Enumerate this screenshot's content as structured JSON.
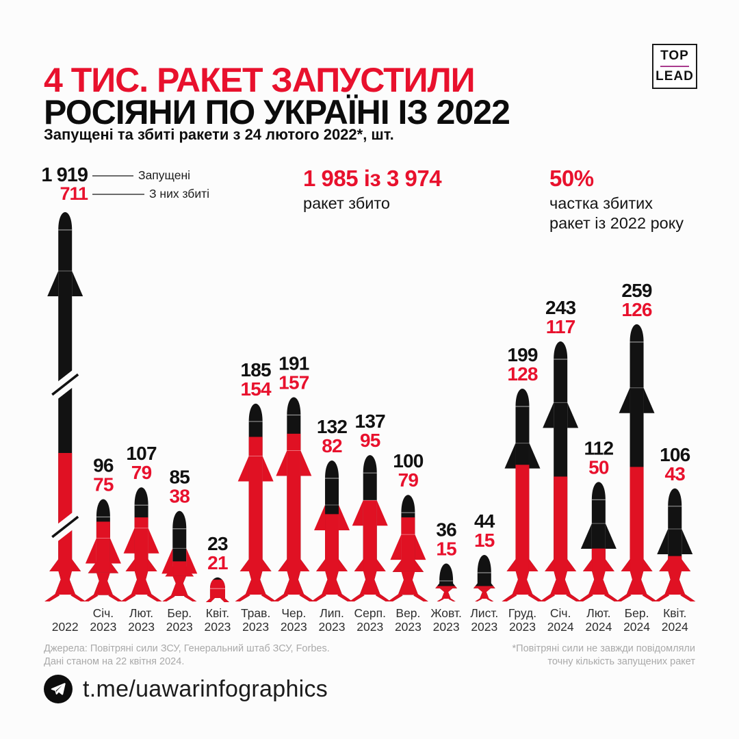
{
  "header": {
    "title_line1": "4 ТИС. РАКЕТ ЗАПУСТИЛИ",
    "title_line2": "РОСІЯНИ ПО УКРАЇНІ ІЗ 2022",
    "subtitle": "Запущені та збиті ракети з 24 лютого 2022*, шт."
  },
  "logo": {
    "line1": "TOP",
    "line2": "LEAD"
  },
  "legend": {
    "launched_value": "1 919",
    "launched_label": "Запущені",
    "downed_value": "711",
    "downed_label": "З них збиті"
  },
  "stats": {
    "downed_total": {
      "value": "1 985 із 3 974",
      "label": "ракет збито"
    },
    "share_2022": {
      "value": "50%",
      "label_line1": "частка збитих",
      "label_line2": "ракет із 2022 року"
    }
  },
  "chart_data": {
    "type": "bar",
    "title": "Запущені та збиті ракети з 24 лютого 2022, шт.",
    "bar_style": "missile-pictogram",
    "first_bar_truncated": true,
    "legend_position": "top-left",
    "grid": false,
    "categories": [
      "2022",
      "Січ. 2023",
      "Лют. 2023",
      "Бер. 2023",
      "Квіт. 2023",
      "Трав. 2023",
      "Чер. 2023",
      "Лип. 2023",
      "Серп. 2023",
      "Вер. 2023",
      "Жовт. 2023",
      "Лист. 2023",
      "Груд. 2023",
      "Січ. 2024",
      "Лют. 2024",
      "Бер. 2024",
      "Квіт. 2024"
    ],
    "series": [
      {
        "name": "Запущені",
        "color": "#121212",
        "values": [
          1919,
          96,
          107,
          85,
          23,
          185,
          191,
          132,
          137,
          100,
          36,
          44,
          199,
          243,
          112,
          259,
          106
        ]
      },
      {
        "name": "З них збиті",
        "color": "#e01123",
        "values": [
          711,
          75,
          79,
          38,
          21,
          154,
          157,
          82,
          95,
          79,
          15,
          15,
          128,
          117,
          50,
          126,
          43
        ]
      }
    ]
  },
  "footnotes": {
    "sources_line1": "Джерела: Повітряні сили ЗСУ, Генеральний штаб ЗСУ, Forbes.",
    "sources_line2": "Дані станом на 22 квітня 2024.",
    "note_line1": "*Повітряні сили не завжди повідомляли",
    "note_line2": "точну кількість запущених ракет"
  },
  "telegram": {
    "handle": "t.me/uawarinfographics"
  },
  "colors": {
    "accent_red": "#e8112d",
    "bar_red": "#e01123",
    "bar_black": "#121212",
    "logo_magenta": "#a93a8d",
    "footnote_gray": "#a9a9a9",
    "axis_text": "#2e2e2e",
    "background": "#fcfcfc"
  }
}
